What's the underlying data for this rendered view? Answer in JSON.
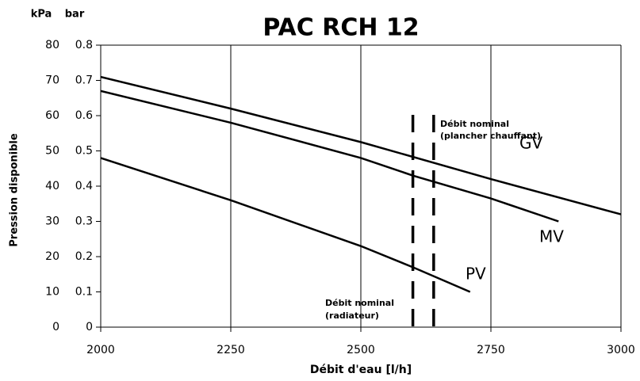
{
  "chart_data": {
    "type": "line",
    "title": "PAC RCH 12",
    "xlabel": "Débit d'eau [l/h]",
    "ylabel": "Pression disponible",
    "yunit": "kPa",
    "y2unit": "bar",
    "xlim": [
      2000,
      3000
    ],
    "xticks": [
      2000,
      2250,
      2500,
      2750,
      3000
    ],
    "ylim": [
      0,
      80
    ],
    "yticks": [
      0,
      10,
      20,
      30,
      40,
      50,
      60,
      70,
      80
    ],
    "y2lim": [
      0,
      0.8
    ],
    "y2ticks": [
      0,
      0.1,
      0.2,
      0.3,
      0.4,
      0.5,
      0.6,
      0.7,
      0.8
    ],
    "grid": true,
    "series": [
      {
        "name": "GV",
        "color": "#000000",
        "x": [
          2000,
          2250,
          2500,
          2750,
          3000
        ],
        "values": [
          71,
          62,
          52.5,
          42,
          32
        ]
      },
      {
        "name": "MV",
        "color": "#000000",
        "x": [
          2000,
          2250,
          2500,
          2600,
          2750,
          2880
        ],
        "values": [
          67,
          58,
          48,
          43,
          36.5,
          30
        ]
      },
      {
        "name": "PV",
        "color": "#000000",
        "x": [
          2000,
          2250,
          2500,
          2600,
          2710
        ],
        "values": [
          48,
          36,
          23,
          17,
          10
        ]
      }
    ],
    "nominal_lines": [
      2600,
      2640
    ],
    "annotations": [
      "Débit nominal",
      "(plancher chauffant)",
      "Débit nominal",
      "(radiateur)"
    ]
  }
}
